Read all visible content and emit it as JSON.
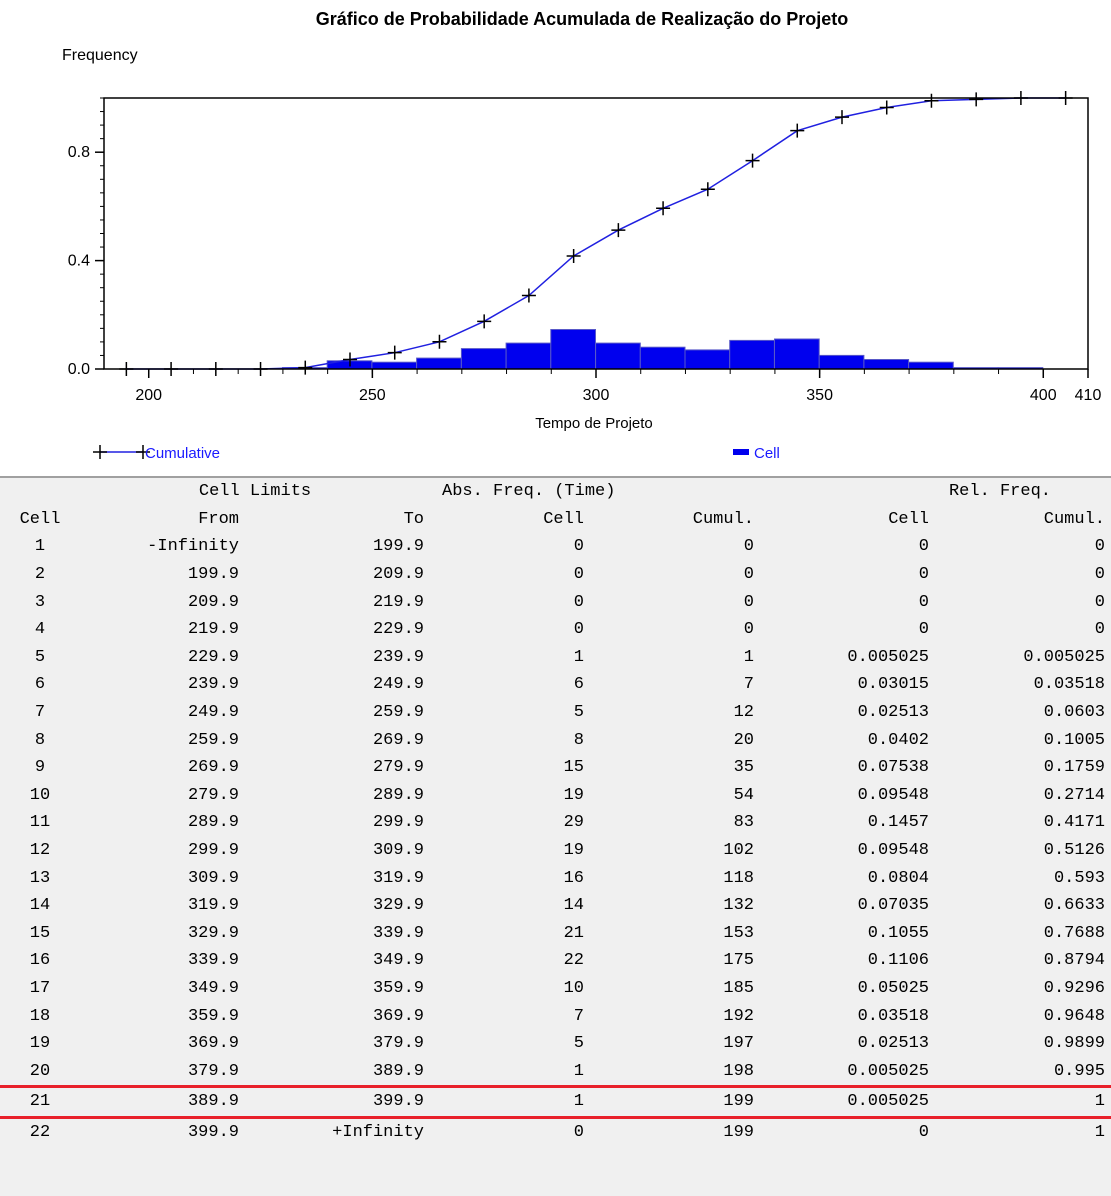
{
  "chart_data": {
    "type": "bar",
    "title": "Gráfico de Probabilidade Acumulada de Realização do Projeto",
    "ylabel": "Frequency",
    "xlabel": "Tempo de Projeto",
    "xlim": [
      190,
      410
    ],
    "ylim": [
      0,
      1.0
    ],
    "x_ticks": [
      200,
      250,
      300,
      350,
      400,
      410
    ],
    "y_ticks": [
      0.0,
      0.4,
      0.8
    ],
    "y_tick_labels": [
      "0.0",
      "0.4",
      "0.8"
    ],
    "legend": {
      "position": "bottom",
      "cumulative_label": "Cumulative",
      "cell_label": "Cell"
    },
    "colors": {
      "cell": "#0000ee",
      "cumulative": "#2020e0",
      "marker": "#000000",
      "axis": "#000000"
    },
    "series": [
      {
        "name": "Cell",
        "type": "bar",
        "bins": [
          [
            229.9,
            239.9,
            0.005025
          ],
          [
            239.9,
            249.9,
            0.03015
          ],
          [
            249.9,
            259.9,
            0.02513
          ],
          [
            259.9,
            269.9,
            0.0402
          ],
          [
            269.9,
            279.9,
            0.07538
          ],
          [
            279.9,
            289.9,
            0.09548
          ],
          [
            289.9,
            299.9,
            0.1457
          ],
          [
            299.9,
            309.9,
            0.09548
          ],
          [
            309.9,
            319.9,
            0.0804
          ],
          [
            319.9,
            329.9,
            0.07035
          ],
          [
            329.9,
            339.9,
            0.1055
          ],
          [
            339.9,
            349.9,
            0.1106
          ],
          [
            349.9,
            359.9,
            0.05025
          ],
          [
            359.9,
            369.9,
            0.03518
          ],
          [
            369.9,
            379.9,
            0.02513
          ],
          [
            379.9,
            389.9,
            0.005025
          ],
          [
            389.9,
            399.9,
            0.005025
          ]
        ]
      },
      {
        "name": "Cumulative",
        "type": "line",
        "points": [
          [
            195,
            0
          ],
          [
            205,
            0
          ],
          [
            215,
            0
          ],
          [
            225,
            0
          ],
          [
            235,
            0.005025
          ],
          [
            245,
            0.03518
          ],
          [
            255,
            0.0603
          ],
          [
            265,
            0.1005
          ],
          [
            275,
            0.1759
          ],
          [
            285,
            0.2714
          ],
          [
            295,
            0.4171
          ],
          [
            305,
            0.5126
          ],
          [
            315,
            0.593
          ],
          [
            325,
            0.6633
          ],
          [
            335,
            0.7688
          ],
          [
            345,
            0.8794
          ],
          [
            355,
            0.9296
          ],
          [
            365,
            0.9648
          ],
          [
            375,
            0.9899
          ],
          [
            385,
            0.995
          ],
          [
            395,
            1
          ],
          [
            405,
            1
          ]
        ]
      }
    ]
  },
  "table": {
    "header_groups": {
      "limits": "Cell Limits",
      "abs": "Abs. Freq. (Time)",
      "rel": "Rel. Freq."
    },
    "columns": [
      "Cell",
      "From",
      "To",
      "Cell",
      "Cumul.",
      "Cell",
      "Cumul."
    ],
    "highlighted_row": "21",
    "highlight_color": "#e8202a",
    "rows": [
      [
        "1",
        "-Infinity",
        "199.9",
        "0",
        "0",
        "0",
        "0"
      ],
      [
        "2",
        "199.9",
        "209.9",
        "0",
        "0",
        "0",
        "0"
      ],
      [
        "3",
        "209.9",
        "219.9",
        "0",
        "0",
        "0",
        "0"
      ],
      [
        "4",
        "219.9",
        "229.9",
        "0",
        "0",
        "0",
        "0"
      ],
      [
        "5",
        "229.9",
        "239.9",
        "1",
        "1",
        "0.005025",
        "0.005025"
      ],
      [
        "6",
        "239.9",
        "249.9",
        "6",
        "7",
        "0.03015",
        "0.03518"
      ],
      [
        "7",
        "249.9",
        "259.9",
        "5",
        "12",
        "0.02513",
        "0.0603"
      ],
      [
        "8",
        "259.9",
        "269.9",
        "8",
        "20",
        "0.0402",
        "0.1005"
      ],
      [
        "9",
        "269.9",
        "279.9",
        "15",
        "35",
        "0.07538",
        "0.1759"
      ],
      [
        "10",
        "279.9",
        "289.9",
        "19",
        "54",
        "0.09548",
        "0.2714"
      ],
      [
        "11",
        "289.9",
        "299.9",
        "29",
        "83",
        "0.1457",
        "0.4171"
      ],
      [
        "12",
        "299.9",
        "309.9",
        "19",
        "102",
        "0.09548",
        "0.5126"
      ],
      [
        "13",
        "309.9",
        "319.9",
        "16",
        "118",
        "0.0804",
        "0.593"
      ],
      [
        "14",
        "319.9",
        "329.9",
        "14",
        "132",
        "0.07035",
        "0.6633"
      ],
      [
        "15",
        "329.9",
        "339.9",
        "21",
        "153",
        "0.1055",
        "0.7688"
      ],
      [
        "16",
        "339.9",
        "349.9",
        "22",
        "175",
        "0.1106",
        "0.8794"
      ],
      [
        "17",
        "349.9",
        "359.9",
        "10",
        "185",
        "0.05025",
        "0.9296"
      ],
      [
        "18",
        "359.9",
        "369.9",
        "7",
        "192",
        "0.03518",
        "0.9648"
      ],
      [
        "19",
        "369.9",
        "379.9",
        "5",
        "197",
        "0.02513",
        "0.9899"
      ],
      [
        "20",
        "379.9",
        "389.9",
        "1",
        "198",
        "0.005025",
        "0.995"
      ],
      [
        "21",
        "389.9",
        "399.9",
        "1",
        "199",
        "0.005025",
        "1"
      ],
      [
        "22",
        "399.9",
        "+Infinity",
        "0",
        "199",
        "0",
        "1"
      ]
    ]
  }
}
